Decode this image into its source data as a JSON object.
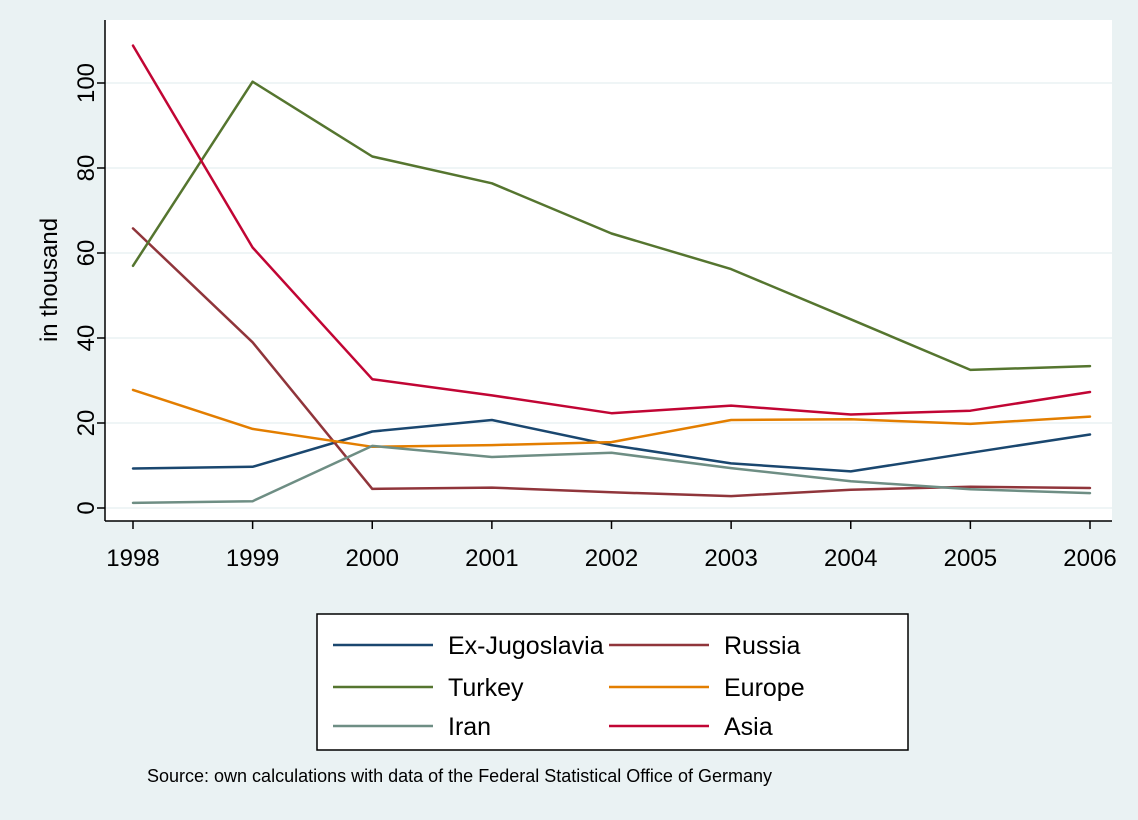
{
  "chart_data": {
    "type": "line",
    "title": "",
    "xlabel": "",
    "ylabel": "in thousand",
    "x": [
      1998,
      1999,
      2000,
      2001,
      2002,
      2003,
      2004,
      2005,
      2006
    ],
    "xticks": [
      "1998",
      "1999",
      "2000",
      "2001",
      "2002",
      "2003",
      "2004",
      "2005",
      "2006"
    ],
    "yticks": [
      "0",
      "20",
      "40",
      "60",
      "80",
      "100"
    ],
    "ylim": [
      -2,
      111
    ],
    "grid": true,
    "legend_placement": "bottom",
    "series": [
      {
        "name": "Ex-Jugoslavia",
        "color": "#1a476f",
        "values": [
          9.3,
          9.7,
          18,
          20.7,
          14.8,
          10.5,
          8.6,
          13,
          17.3
        ]
      },
      {
        "name": "Russia",
        "color": "#90353b",
        "values": [
          65.8,
          39,
          4.5,
          4.8,
          3.7,
          2.8,
          4.3,
          5,
          4.7
        ]
      },
      {
        "name": "Turkey",
        "color": "#55752f",
        "values": [
          57,
          100.3,
          82.7,
          76.4,
          64.6,
          56.2,
          44.4,
          32.5,
          33.4
        ]
      },
      {
        "name": "Europe",
        "color": "#e37e00",
        "values": [
          27.8,
          18.6,
          14.4,
          14.8,
          15.5,
          20.7,
          20.9,
          19.8,
          21.5
        ]
      },
      {
        "name": "Iran",
        "color": "#6e8e84",
        "values": [
          1.2,
          1.6,
          14.6,
          12,
          13,
          9.4,
          6.3,
          4.4,
          3.5
        ]
      },
      {
        "name": "Asia",
        "color": "#c10534",
        "values": [
          108.8,
          61.3,
          30.3,
          26.5,
          22.3,
          24.1,
          22,
          22.9,
          27.3
        ]
      }
    ],
    "note": "Source: own calculations with data of the Federal Statistical Office of Germany"
  }
}
